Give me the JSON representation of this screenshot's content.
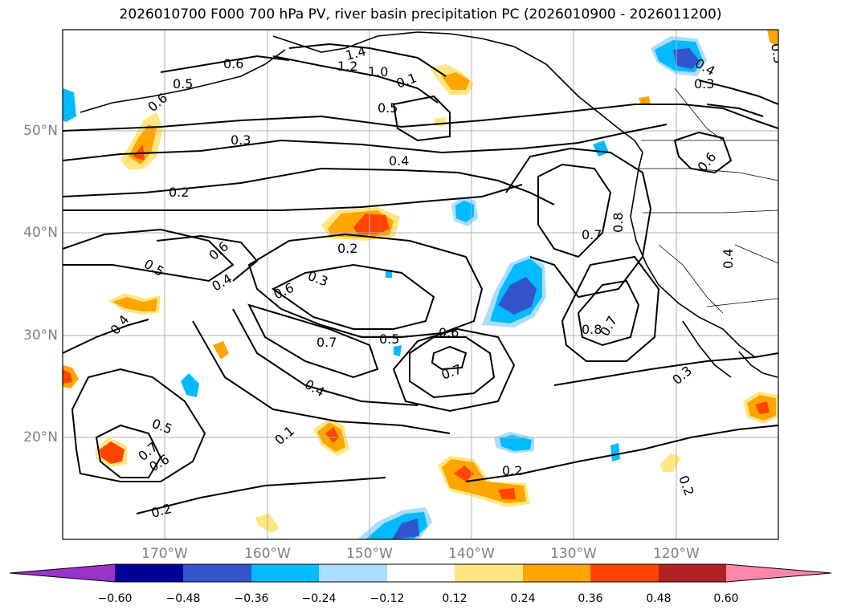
{
  "title": "2026010700 F000 700 hPa PV, river basin precipitation PC (2026010900 - 2026011200)",
  "lat_labels": [
    "50°N",
    "40°N",
    "30°N",
    "20°N"
  ],
  "lon_labels": [
    "170°W",
    "160°W",
    "150°W",
    "140°W",
    "130°W",
    "120°W"
  ],
  "colorbar": {
    "tick_labels": [
      "−0.60",
      "−0.48",
      "−0.36",
      "−0.24",
      "−0.12",
      "0.12",
      "0.24",
      "0.36",
      "0.48",
      "0.60"
    ],
    "colors": [
      "#9933cc",
      "#000099",
      "#3355cc",
      "#00bbff",
      "#aaddff",
      "#ffffff",
      "#ffe680",
      "#ffa500",
      "#ff4500",
      "#b22222",
      "#ff88aa"
    ]
  },
  "contour_labels": [
    "1.4",
    "1.2",
    "1.0",
    "0.6",
    "0.5",
    "0.6",
    "0.1",
    "0.5",
    "0.3",
    "0.4",
    "0.2",
    "0.2",
    "0.6",
    "0.5",
    "0.4",
    "0.3",
    "0.6",
    "0.7",
    "0.5",
    "0.6",
    "0.7",
    "0.4",
    "0.4",
    "0.5",
    "0.7",
    "0.6",
    "0.2",
    "0.7",
    "0.8",
    "0.8",
    "0.7",
    "0.2",
    "0.3",
    "0.4",
    "0.6",
    "0.3",
    "0.4",
    "0.2",
    "0.1",
    "0.5"
  ]
}
